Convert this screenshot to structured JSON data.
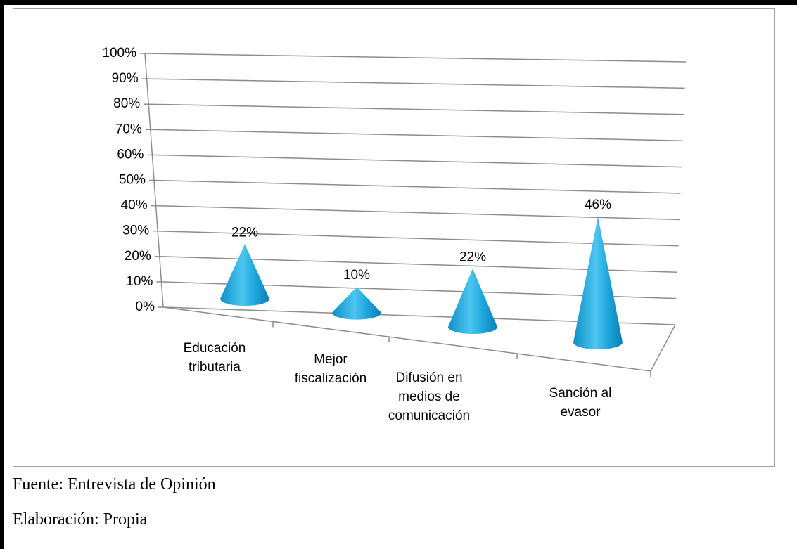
{
  "chart_data": {
    "type": "cone3d",
    "categories": [
      "Educación tributaria",
      "Mejor fiscalización",
      "Difusión en medios de comunicación",
      "Sanción al evasor"
    ],
    "values": [
      22,
      10,
      22,
      46
    ],
    "value_labels": [
      "22%",
      "10%",
      "22%",
      "46%"
    ],
    "color": "#1ea7dc",
    "ylim": [
      0,
      100
    ],
    "yticks": [
      {
        "value": 0,
        "label": "0%"
      },
      {
        "value": 10,
        "label": "10%"
      },
      {
        "value": 20,
        "label": "20%"
      },
      {
        "value": 30,
        "label": "30%"
      },
      {
        "value": 40,
        "label": "40%"
      },
      {
        "value": 50,
        "label": "50%"
      },
      {
        "value": 60,
        "label": "60%"
      },
      {
        "value": 70,
        "label": "70%"
      },
      {
        "value": 80,
        "label": "80%"
      },
      {
        "value": 90,
        "label": "90%"
      },
      {
        "value": 100,
        "label": "100%"
      }
    ],
    "grid": true
  },
  "footer": {
    "source": "Fuente: Entrevista de Opinión",
    "author": "Elaboración: Propia"
  }
}
